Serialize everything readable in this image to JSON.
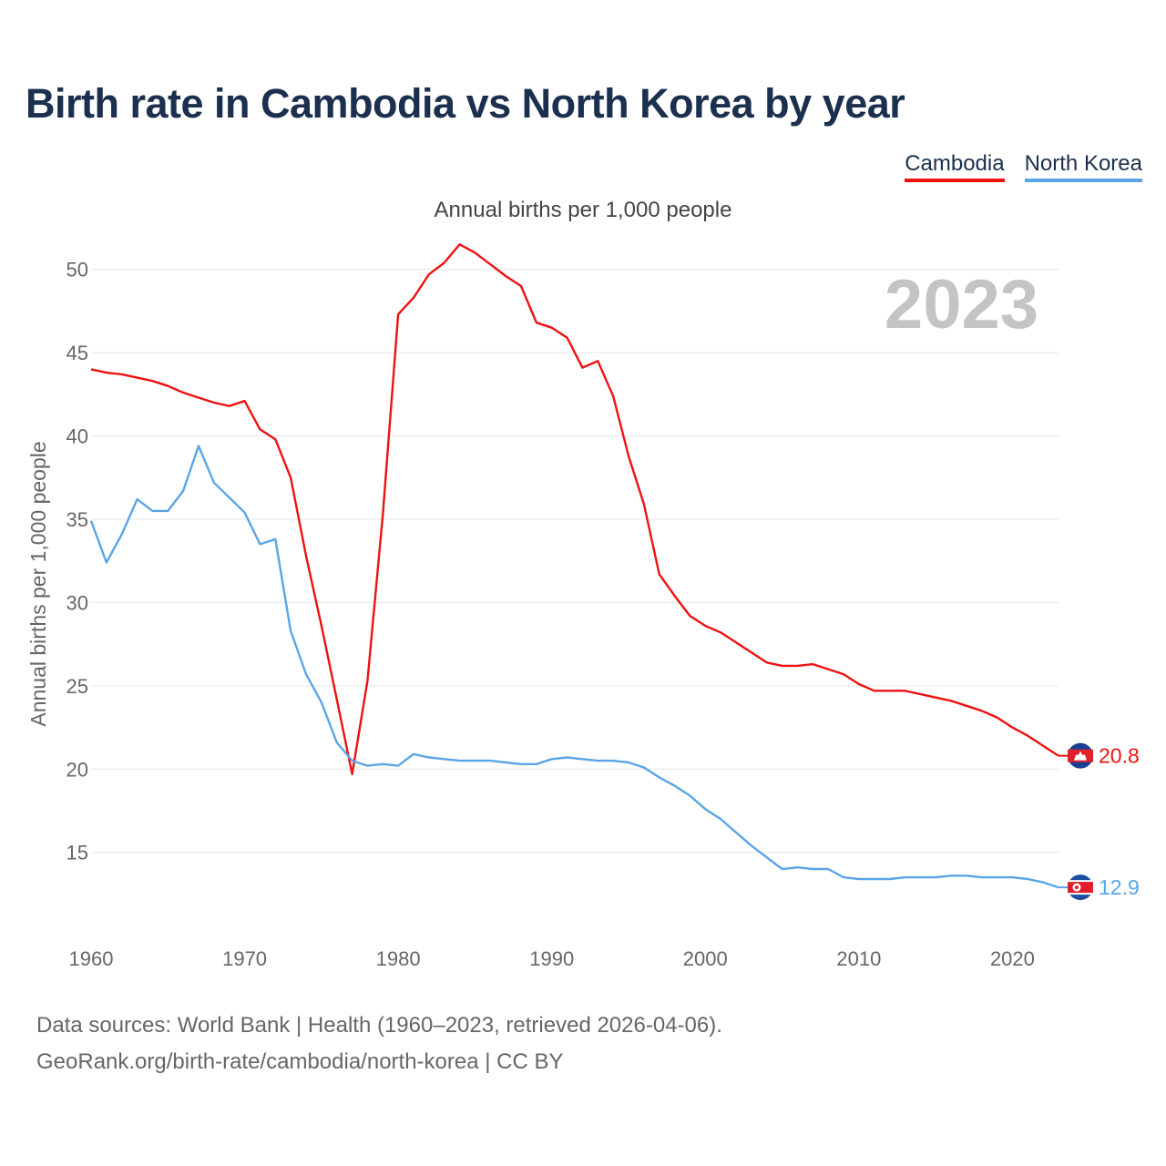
{
  "title": "Birth rate in Cambodia vs North Korea by year",
  "subtitle": "Annual births per 1,000 people",
  "legend": [
    {
      "name": "Cambodia",
      "color": "#ee1111"
    },
    {
      "name": "North Korea",
      "color": "#5aa5e6"
    }
  ],
  "year_label": "2023",
  "footer": {
    "line1": "Data sources: World Bank | Health (1960–2023, retrieved 2026-04-06).",
    "line2": "GeoRank.org/birth-rate/cambodia/north-korea | CC BY"
  },
  "chart_data": {
    "type": "line",
    "title": "Birth rate in Cambodia vs North Korea by year",
    "xlabel": "",
    "ylabel": "Annual births per 1,000 people",
    "xlim": [
      1960,
      2023
    ],
    "ylim": [
      10.5,
      52.5
    ],
    "x_ticks": [
      1960,
      1970,
      1980,
      1990,
      2000,
      2010,
      2020
    ],
    "y_ticks": [
      15,
      20,
      25,
      30,
      35,
      40,
      45,
      50
    ],
    "grid": true,
    "legend_position": "top-right",
    "x": [
      1960,
      1961,
      1962,
      1963,
      1964,
      1965,
      1966,
      1967,
      1968,
      1969,
      1970,
      1971,
      1972,
      1973,
      1974,
      1975,
      1976,
      1977,
      1978,
      1979,
      1980,
      1981,
      1982,
      1983,
      1984,
      1985,
      1986,
      1987,
      1988,
      1989,
      1990,
      1991,
      1992,
      1993,
      1994,
      1995,
      1996,
      1997,
      1998,
      1999,
      2000,
      2001,
      2002,
      2003,
      2004,
      2005,
      2006,
      2007,
      2008,
      2009,
      2010,
      2011,
      2012,
      2013,
      2014,
      2015,
      2016,
      2017,
      2018,
      2019,
      2020,
      2021,
      2022,
      2023
    ],
    "series": [
      {
        "name": "Cambodia",
        "color": "#ee1111",
        "end_label": "20.8",
        "values": [
          44.0,
          43.8,
          43.7,
          43.5,
          43.3,
          43.0,
          42.6,
          42.3,
          42.0,
          41.8,
          42.1,
          40.4,
          39.8,
          37.5,
          32.8,
          28.6,
          24.2,
          19.7,
          25.3,
          35.3,
          47.3,
          48.3,
          49.7,
          50.4,
          51.5,
          51.0,
          50.3,
          49.6,
          49.0,
          46.8,
          46.5,
          45.9,
          44.1,
          44.5,
          42.4,
          38.8,
          35.9,
          31.7,
          30.4,
          29.2,
          28.6,
          28.2,
          27.6,
          27.0,
          26.4,
          26.2,
          26.2,
          26.3,
          26.0,
          25.7,
          25.1,
          24.7,
          24.7,
          24.7,
          24.5,
          24.3,
          24.1,
          23.8,
          23.5,
          23.1,
          22.5,
          22.0,
          21.4,
          20.8
        ]
      },
      {
        "name": "North Korea",
        "color": "#5aa5e6",
        "end_label": "12.9",
        "values": [
          34.9,
          32.4,
          34.1,
          36.2,
          35.5,
          35.5,
          36.7,
          39.4,
          37.2,
          36.3,
          35.4,
          33.5,
          33.8,
          28.3,
          25.7,
          24.0,
          21.6,
          20.5,
          20.2,
          20.3,
          20.2,
          20.9,
          20.7,
          20.6,
          20.5,
          20.5,
          20.5,
          20.4,
          20.3,
          20.3,
          20.6,
          20.7,
          20.6,
          20.5,
          20.5,
          20.4,
          20.1,
          19.5,
          19.0,
          18.4,
          17.6,
          17.0,
          16.2,
          15.4,
          14.7,
          14.0,
          14.1,
          14.0,
          14.0,
          13.5,
          13.4,
          13.4,
          13.4,
          13.5,
          13.5,
          13.5,
          13.6,
          13.6,
          13.5,
          13.5,
          13.5,
          13.4,
          13.2,
          12.9
        ]
      }
    ]
  }
}
